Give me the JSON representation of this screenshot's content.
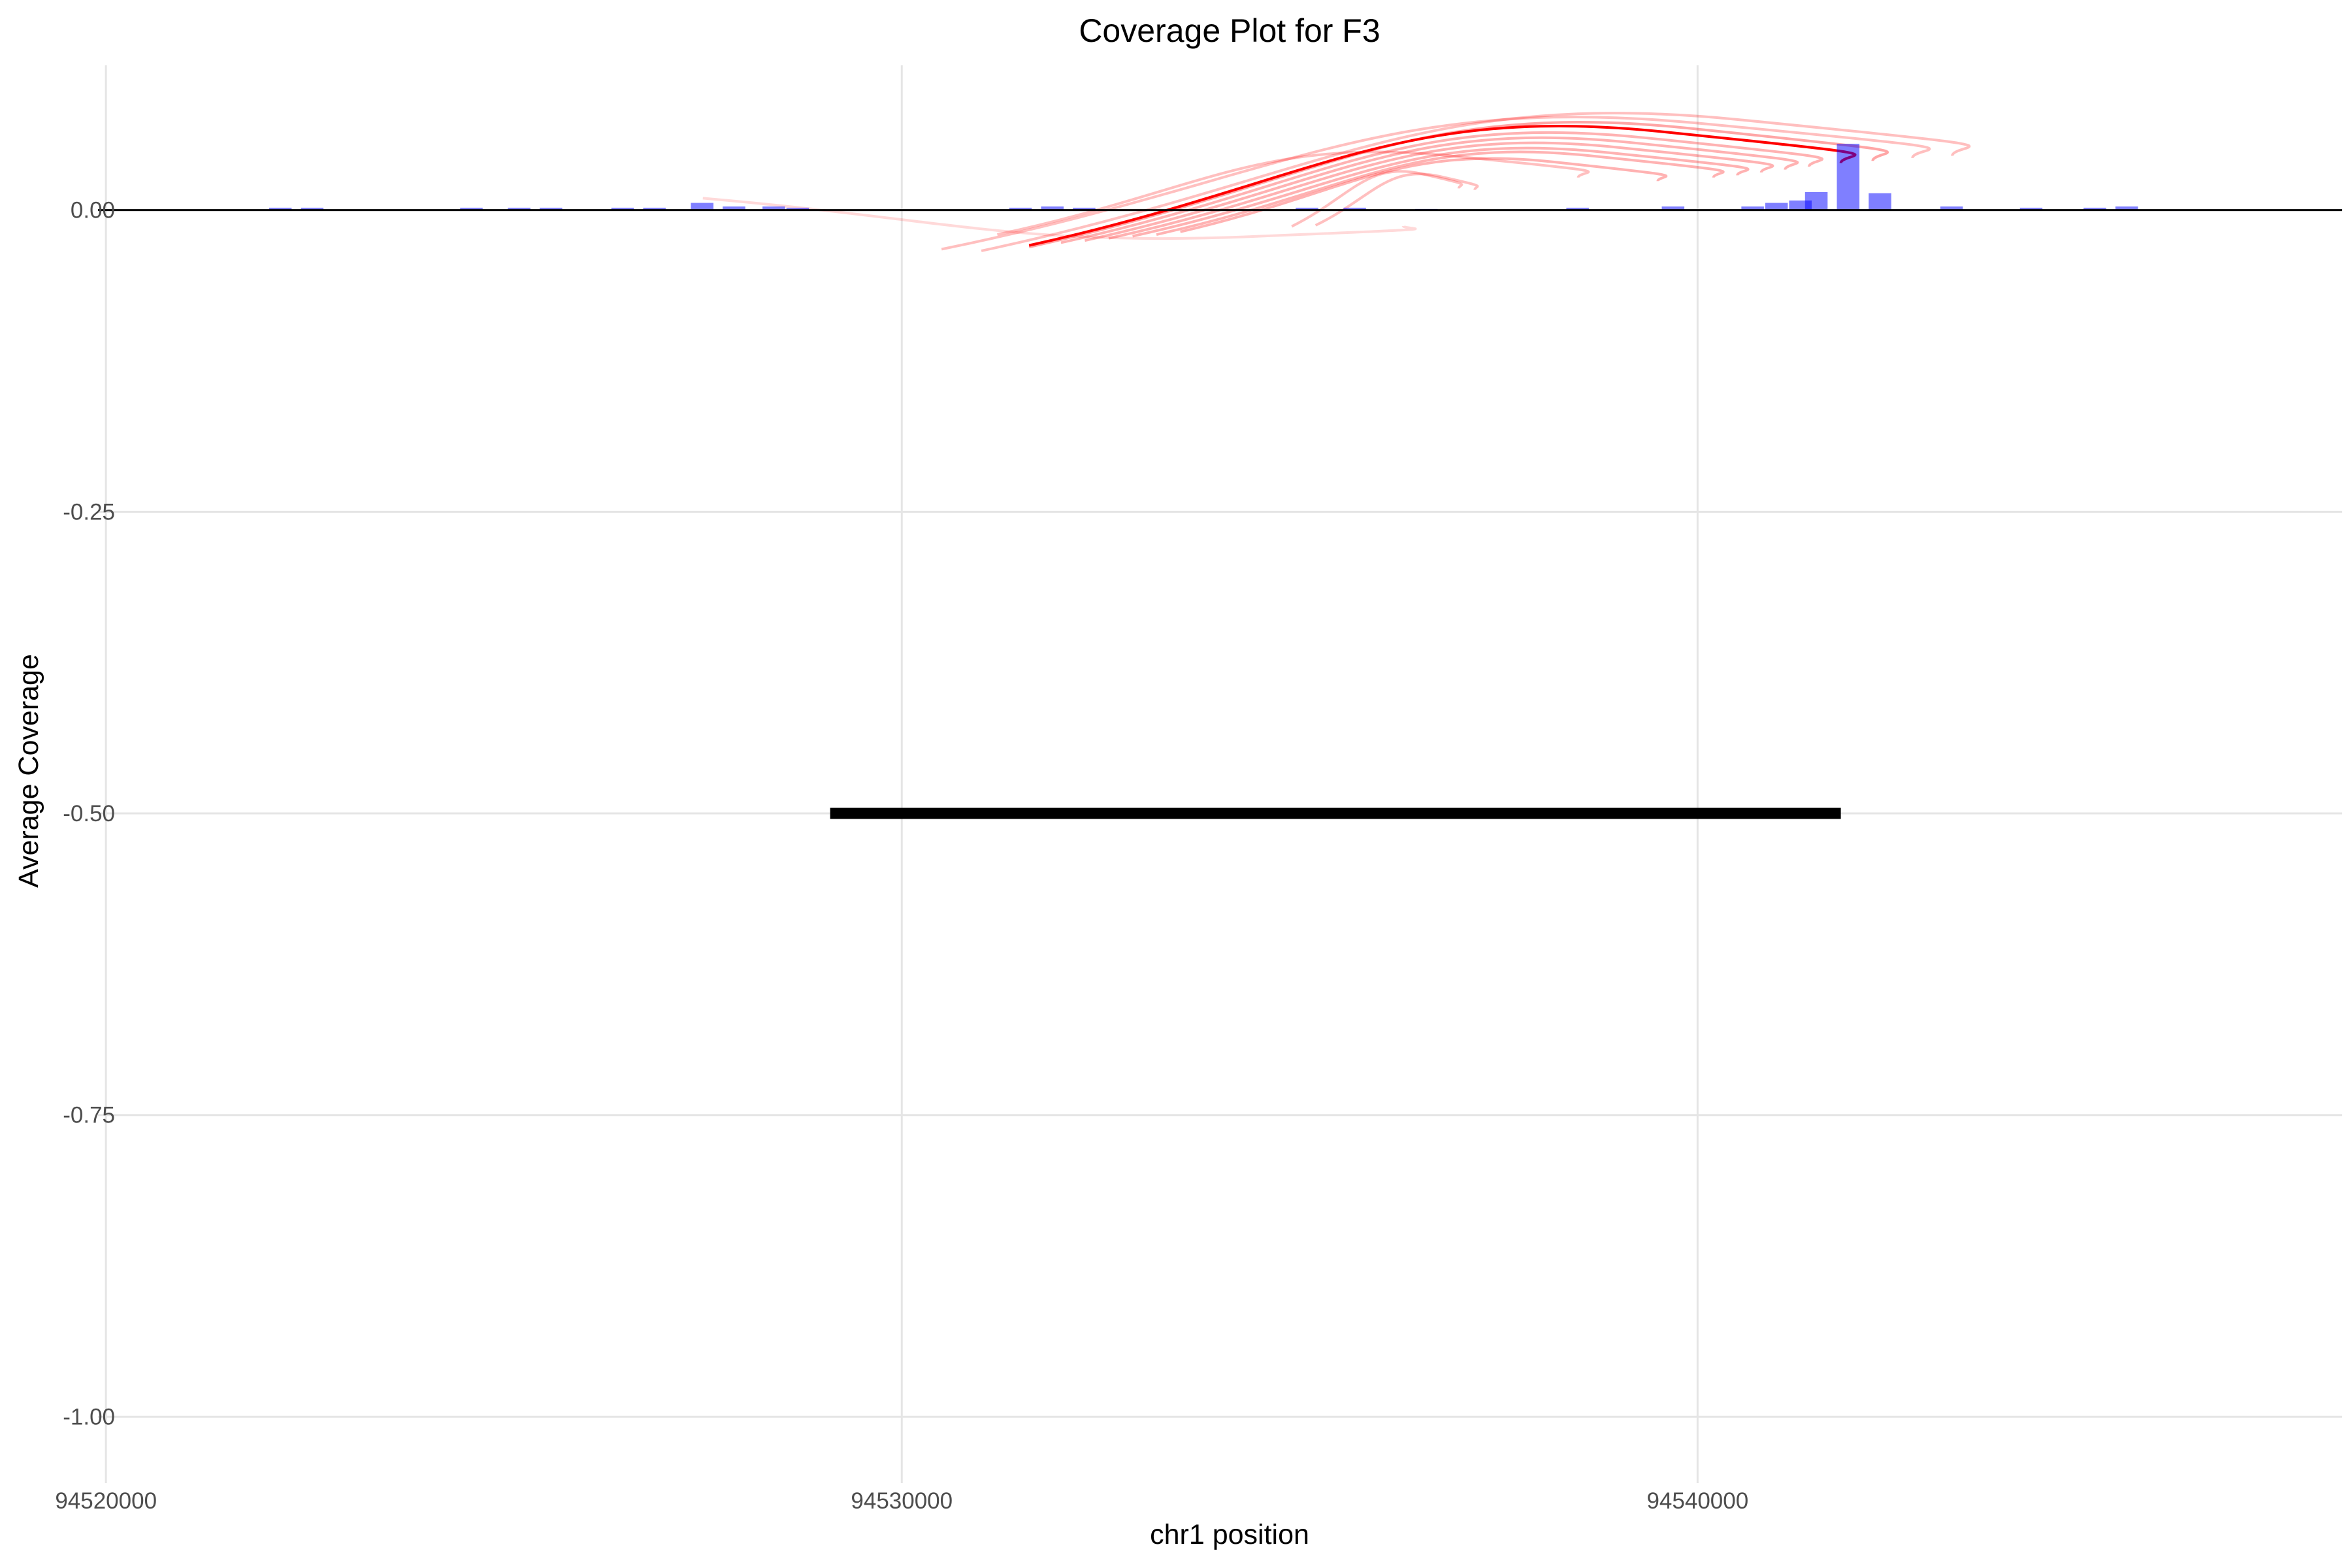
{
  "chart_data": {
    "type": "bar",
    "title": "Coverage Plot for F3",
    "xlabel": "chr1 position",
    "ylabel": "Average Coverage",
    "xlim": [
      94519900,
      94548100
    ],
    "ylim": [
      -1.055,
      0.12
    ],
    "x_ticks": [
      94520000,
      94530000,
      94540000
    ],
    "x_tick_labels": [
      "94520000",
      "94530000",
      "94540000"
    ],
    "y_ticks": [
      0,
      -0.25,
      -0.5,
      -0.75,
      -1.0
    ],
    "y_tick_labels": [
      "0.00",
      "-0.25",
      "-0.50",
      "-0.75",
      "-1.00"
    ],
    "grid": true,
    "legend": "none",
    "coverage_bars": {
      "name": "coverage",
      "color": "#0000ff",
      "opacity": 0.5,
      "bin_width": 300,
      "x": [
        94522200,
        94522600,
        94524600,
        94525200,
        94525600,
        94526500,
        94526900,
        94527500,
        94527900,
        94528400,
        94528700,
        94531500,
        94531900,
        94532300,
        94535100,
        94535700,
        94536600,
        94538500,
        94539700,
        94540700,
        94541000,
        94541300,
        94541500,
        94541900,
        94542300,
        94543200,
        94544200,
        94545000,
        94545400
      ],
      "values": [
        0.002,
        0.002,
        0.002,
        0.002,
        0.002,
        0.002,
        0.002,
        0.006,
        0.003,
        0.003,
        0.002,
        0.002,
        0.003,
        0.002,
        0.002,
        0.002,
        0.001,
        0.002,
        0.003,
        0.003,
        0.006,
        0.008,
        0.015,
        0.055,
        0.014,
        0.003,
        0.002,
        0.002,
        0.003
      ]
    },
    "junction_arcs": {
      "color": "#ff0000",
      "arcs": [
        {
          "start": 94531600,
          "end": 94541800,
          "height": 0.065,
          "opacity": 1.0
        },
        {
          "start": 94531600,
          "end": 94542200,
          "height": 0.068,
          "opacity": 0.35
        },
        {
          "start": 94532000,
          "end": 94541400,
          "height": 0.06,
          "opacity": 0.3
        },
        {
          "start": 94532300,
          "end": 94541100,
          "height": 0.056,
          "opacity": 0.3
        },
        {
          "start": 94532600,
          "end": 94540800,
          "height": 0.052,
          "opacity": 0.3
        },
        {
          "start": 94532900,
          "end": 94540500,
          "height": 0.048,
          "opacity": 0.3
        },
        {
          "start": 94533200,
          "end": 94540200,
          "height": 0.045,
          "opacity": 0.3
        },
        {
          "start": 94533500,
          "end": 94539500,
          "height": 0.04,
          "opacity": 0.3
        },
        {
          "start": 94530500,
          "end": 94542700,
          "height": 0.072,
          "opacity": 0.25
        },
        {
          "start": 94531000,
          "end": 94543200,
          "height": 0.075,
          "opacity": 0.25
        },
        {
          "start": 94531200,
          "end": 94538500,
          "height": 0.045,
          "opacity": 0.25
        },
        {
          "start": 94534900,
          "end": 94537000,
          "height": 0.03,
          "opacity": 0.25
        },
        {
          "start": 94535200,
          "end": 94537200,
          "height": 0.028,
          "opacity": 0.25
        },
        {
          "start": 94527500,
          "end": 94536300,
          "height": -0.022,
          "opacity": 0.15
        }
      ]
    },
    "reference_line": {
      "y": 0,
      "color": "#000000"
    },
    "gene_segment": {
      "start": 94529100,
      "end": 94541800,
      "y": -0.5,
      "color": "#000000"
    }
  }
}
